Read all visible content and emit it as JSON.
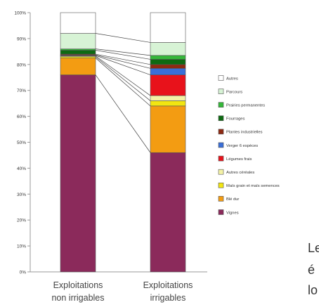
{
  "chart_data": {
    "type": "bar",
    "stacked": true,
    "normalized": true,
    "title": "",
    "xlabel": "",
    "ylabel": "",
    "ylim": [
      0,
      100
    ],
    "yticks": [
      "0%",
      "10%",
      "20%",
      "30%",
      "40%",
      "50%",
      "60%",
      "70%",
      "80%",
      "90%",
      "100%"
    ],
    "categories": [
      "Exploitations non irrigables",
      "Exploitations irrigables"
    ],
    "category_lines": [
      [
        "Exploitations",
        "non irrigables"
      ],
      [
        "Exploitations",
        "irrigables"
      ]
    ],
    "legend_position": "right",
    "grid": false,
    "series": [
      {
        "name": "Vignes",
        "color": "#8B2A5B",
        "values": [
          76,
          46
        ]
      },
      {
        "name": "Blé dur",
        "color": "#F39C12",
        "values": [
          6.5,
          18
        ]
      },
      {
        "name": "Maïs grain et maïs semences",
        "color": "#F2E611",
        "values": [
          0.5,
          2
        ]
      },
      {
        "name": "Autres céréales",
        "color": "#F4F2A6",
        "values": [
          0.3,
          2
        ]
      },
      {
        "name": "Légumes frais",
        "color": "#E8121B",
        "values": [
          0.2,
          8
        ]
      },
      {
        "name": "Verger 6 espèces",
        "color": "#3A6FD8",
        "values": [
          0.2,
          2.5
        ]
      },
      {
        "name": "Plantes industrielles",
        "color": "#8E2A12",
        "values": [
          0.3,
          1.5
        ]
      },
      {
        "name": "Fourrages",
        "color": "#0E6A12",
        "values": [
          1.5,
          2
        ]
      },
      {
        "name": "Prairies permanentes",
        "color": "#35B83A",
        "values": [
          0.5,
          1.5
        ]
      },
      {
        "name": "Parcours",
        "color": "#D7F3D5",
        "values": [
          6,
          5
        ]
      },
      {
        "name": "Autres",
        "color": "#FFFFFF",
        "values": [
          8,
          11.5
        ]
      }
    ]
  },
  "page_text": {
    "cut_line_1": "Le",
    "cut_line_2": "é",
    "cut_line_3": "lo"
  }
}
